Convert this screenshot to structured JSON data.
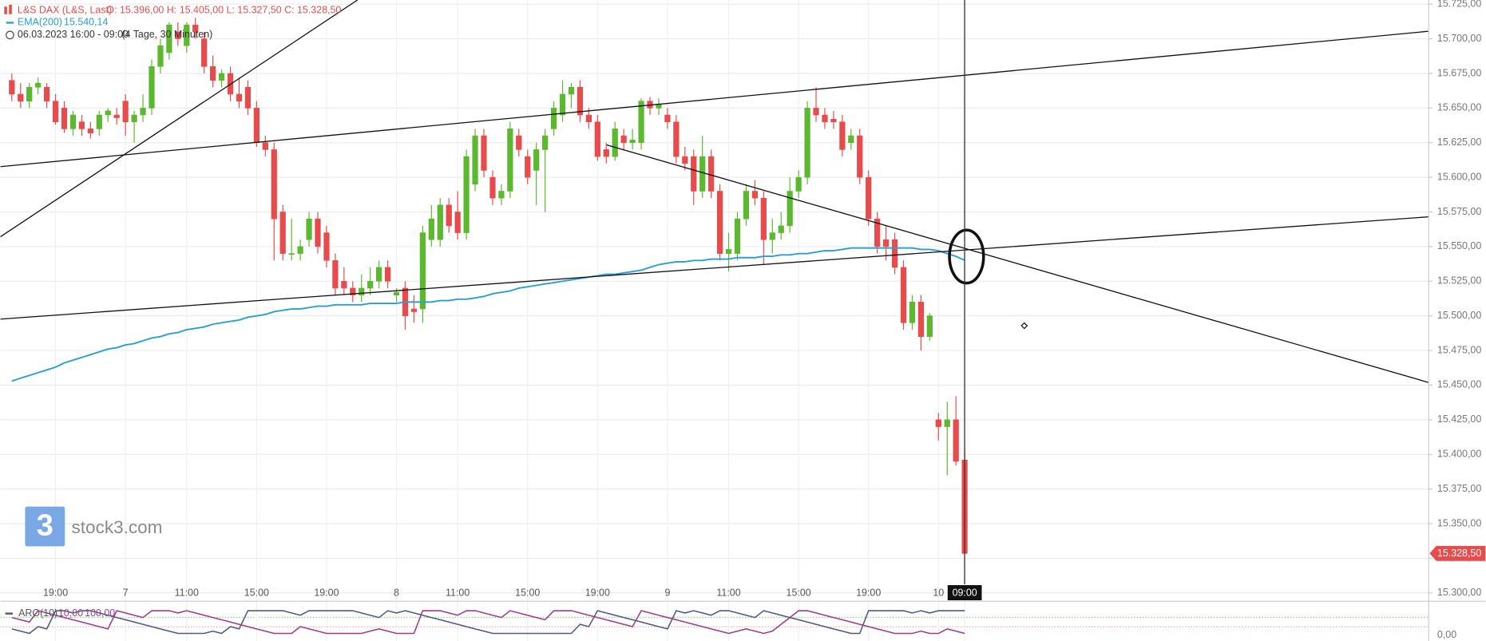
{
  "chart_data": {
    "type": "candlestick",
    "instrument": "L&S DAX (L&S, Last)",
    "ohlc_legend": "O: 15.396,00  H: 15.405,00  L: 15.327,50  C: 15.328,50",
    "ema_name": "EMA(200)",
    "ema_value_label": "15.540,14",
    "period": "06.03.2023 16:00 - 09:00",
    "period_detail": "(4 Tage, 30 Minuten)",
    "watermark": "stock3.com",
    "last_price_label": "15.328,50",
    "up_color": "#5cb82e",
    "down_color": "#e84b4b",
    "ema_color": "#2a9fd0",
    "grid": true,
    "ylim": [
      15294,
      15728
    ],
    "yticks": [
      {
        "value": 15300,
        "label": "15.300,00"
      },
      {
        "value": 15325,
        "label": "15.325,00"
      },
      {
        "value": 15350,
        "label": "15.350,00"
      },
      {
        "value": 15375,
        "label": "15.375,00"
      },
      {
        "value": 15400,
        "label": "15.400,00"
      },
      {
        "value": 15425,
        "label": "15.425,00"
      },
      {
        "value": 15450,
        "label": "15.450,00"
      },
      {
        "value": 15475,
        "label": "15.475,00"
      },
      {
        "value": 15500,
        "label": "15.500,00"
      },
      {
        "value": 15525,
        "label": "15.525,00"
      },
      {
        "value": 15550,
        "label": "15.550,00"
      },
      {
        "value": 15575,
        "label": "15.575,00"
      },
      {
        "value": 15600,
        "label": "15.600,00"
      },
      {
        "value": 15625,
        "label": "15.625,00"
      },
      {
        "value": 15650,
        "label": "15.650,00"
      },
      {
        "value": 15675,
        "label": "15.675,00"
      },
      {
        "value": 15700,
        "label": "15.700,00"
      },
      {
        "value": 15725,
        "label": "15.725,00"
      }
    ],
    "categories": [
      null,
      null,
      null,
      null,
      null,
      "19:00",
      null,
      null,
      null,
      null,
      null,
      null,
      null,
      "7",
      null,
      null,
      null,
      null,
      null,
      null,
      "11:00",
      null,
      null,
      null,
      null,
      null,
      null,
      null,
      "15:00",
      null,
      null,
      null,
      null,
      null,
      null,
      null,
      "19:00",
      null,
      null,
      null,
      null,
      null,
      null,
      null,
      "8",
      null,
      null,
      null,
      null,
      null,
      null,
      "11:00",
      null,
      null,
      null,
      null,
      null,
      null,
      null,
      "15:00",
      null,
      null,
      null,
      null,
      null,
      null,
      null,
      "19:00",
      null,
      null,
      null,
      null,
      null,
      null,
      null,
      "9",
      null,
      null,
      null,
      null,
      null,
      null,
      "11:00",
      null,
      null,
      null,
      null,
      null,
      null,
      null,
      "15:00",
      null,
      null,
      null,
      null,
      null,
      null,
      null,
      "19:00",
      null,
      null,
      null,
      null,
      null,
      null,
      null,
      "10",
      null,
      null,
      "09:00"
    ],
    "ohlc": [
      [
        15670,
        15675,
        15655,
        15660
      ],
      [
        15660,
        15668,
        15650,
        15655
      ],
      [
        15655,
        15668,
        15650,
        15665
      ],
      [
        15665,
        15672,
        15660,
        15668
      ],
      [
        15665,
        15668,
        15650,
        15655
      ],
      [
        15655,
        15660,
        15638,
        15640
      ],
      [
        15650,
        15655,
        15632,
        15635
      ],
      [
        15635,
        15648,
        15630,
        15645
      ],
      [
        15640,
        15645,
        15630,
        15635
      ],
      [
        15635,
        15640,
        15628,
        15632
      ],
      [
        15635,
        15648,
        15630,
        15645
      ],
      [
        15645,
        15650,
        15640,
        15648
      ],
      [
        15645,
        15650,
        15638,
        15643
      ],
      [
        15655,
        15660,
        15630,
        15640
      ],
      [
        15640,
        15648,
        15625,
        15645
      ],
      [
        15645,
        15660,
        15640,
        15650
      ],
      [
        15650,
        15685,
        15645,
        15680
      ],
      [
        15680,
        15700,
        15675,
        15695
      ],
      [
        15690,
        15712,
        15685,
        15710
      ],
      [
        15705,
        15712,
        15695,
        15700
      ],
      [
        15695,
        15712,
        15690,
        15710
      ],
      [
        15710,
        15715,
        15700,
        15705
      ],
      [
        15700,
        15705,
        15675,
        15680
      ],
      [
        15680,
        15688,
        15665,
        15670
      ],
      [
        15670,
        15678,
        15665,
        15675
      ],
      [
        15675,
        15680,
        15655,
        15660
      ],
      [
        15660,
        15672,
        15650,
        15655
      ],
      [
        15665,
        15670,
        15645,
        15650
      ],
      [
        15650,
        15655,
        15622,
        15625
      ],
      [
        15625,
        15630,
        15615,
        15620
      ],
      [
        15620,
        15625,
        15540,
        15570
      ],
      [
        15575,
        15580,
        15540,
        15545
      ],
      [
        15545,
        15570,
        15540,
        15545
      ],
      [
        15545,
        15555,
        15540,
        15550
      ],
      [
        15555,
        15575,
        15550,
        15570
      ],
      [
        15570,
        15575,
        15545,
        15550
      ],
      [
        15560,
        15565,
        15535,
        15540
      ],
      [
        15540,
        15545,
        15515,
        15520
      ],
      [
        15525,
        15535,
        15515,
        15520
      ],
      [
        15520,
        15525,
        15510,
        15515
      ],
      [
        15515,
        15530,
        15510,
        15520
      ],
      [
        15520,
        15535,
        15515,
        15525
      ],
      [
        15525,
        15540,
        15520,
        15535
      ],
      [
        15535,
        15540,
        15520,
        15525
      ],
      [
        15515,
        15520,
        15510,
        15517
      ],
      [
        15520,
        15525,
        15490,
        15500
      ],
      [
        15505,
        15515,
        15495,
        15503
      ],
      [
        15505,
        15565,
        15495,
        15560
      ],
      [
        15555,
        15580,
        15550,
        15570
      ],
      [
        15555,
        15585,
        15550,
        15580
      ],
      [
        15580,
        15585,
        15560,
        15565
      ],
      [
        15575,
        15590,
        15555,
        15560
      ],
      [
        15560,
        15620,
        15555,
        15615
      ],
      [
        15595,
        15635,
        15590,
        15630
      ],
      [
        15630,
        15635,
        15600,
        15605
      ],
      [
        15600,
        15605,
        15580,
        15585
      ],
      [
        15585,
        15595,
        15580,
        15590
      ],
      [
        15590,
        15640,
        15585,
        15635
      ],
      [
        15630,
        15635,
        15615,
        15620
      ],
      [
        15615,
        15620,
        15595,
        15600
      ],
      [
        15605,
        15625,
        15580,
        15620
      ],
      [
        15620,
        15635,
        15575,
        15630
      ],
      [
        15635,
        15655,
        15630,
        15650
      ],
      [
        15645,
        15670,
        15640,
        15660
      ],
      [
        15660,
        15668,
        15650,
        15665
      ],
      [
        15665,
        15670,
        15640,
        15645
      ],
      [
        15645,
        15650,
        15635,
        15640
      ],
      [
        15640,
        15645,
        15612,
        15615
      ],
      [
        15620,
        15625,
        15610,
        15615
      ],
      [
        15615,
        15640,
        15612,
        15635
      ],
      [
        15630,
        15635,
        15620,
        15625
      ],
      [
        15625,
        15635,
        15620,
        15627
      ],
      [
        15625,
        15657,
        15620,
        15655
      ],
      [
        15655,
        15658,
        15645,
        15650
      ],
      [
        15650,
        15657,
        15645,
        15653
      ],
      [
        15645,
        15650,
        15635,
        15640
      ],
      [
        15640,
        15645,
        15610,
        15615
      ],
      [
        15615,
        15622,
        15605,
        15610
      ],
      [
        15615,
        15620,
        15580,
        15590
      ],
      [
        15590,
        15630,
        15585,
        15615
      ],
      [
        15615,
        15620,
        15585,
        15590
      ],
      [
        15590,
        15595,
        15540,
        15545
      ],
      [
        15545,
        15560,
        15532,
        15548
      ],
      [
        15545,
        15575,
        15540,
        15570
      ],
      [
        15570,
        15595,
        15565,
        15590
      ],
      [
        15590,
        15598,
        15580,
        15585
      ],
      [
        15585,
        15590,
        15537,
        15555
      ],
      [
        15555,
        15570,
        15545,
        15560
      ],
      [
        15560,
        15575,
        15555,
        15565
      ],
      [
        15565,
        15600,
        15560,
        15590
      ],
      [
        15590,
        15605,
        15585,
        15600
      ],
      [
        15600,
        15655,
        15595,
        15650
      ],
      [
        15650,
        15665,
        15640,
        15645
      ],
      [
        15645,
        15650,
        15635,
        15640
      ],
      [
        15642,
        15648,
        15635,
        15640
      ],
      [
        15640,
        15645,
        15615,
        15620
      ],
      [
        15625,
        15635,
        15620,
        15630
      ],
      [
        15630,
        15635,
        15595,
        15600
      ],
      [
        15600,
        15605,
        15565,
        15570
      ],
      [
        15570,
        15575,
        15545,
        15550
      ],
      [
        15555,
        15565,
        15540,
        15550
      ],
      [
        15555,
        15560,
        15530,
        15535
      ],
      [
        15535,
        15540,
        15490,
        15495
      ],
      [
        15495,
        15515,
        15490,
        15510
      ],
      [
        15510,
        15515,
        15475,
        15485
      ],
      [
        15485,
        15502,
        15482,
        15500
      ],
      [
        15425,
        15430,
        15410,
        15420
      ],
      [
        15420,
        15438,
        15385,
        15425
      ],
      [
        15425,
        15442,
        15392,
        15395
      ],
      [
        15396,
        15405,
        15327.5,
        15328.5
      ]
    ],
    "ema": [
      15453,
      15455,
      15457,
      15459,
      15461,
      15463,
      15466,
      15468,
      15470,
      15472,
      15474,
      15476,
      15477,
      15479,
      15480,
      15482,
      15484,
      15485,
      15487,
      15488,
      15490,
      15491,
      15492,
      15494,
      15495,
      15496,
      15497,
      15499,
      15500,
      15501,
      15503,
      15504,
      15505,
      15505,
      15506,
      15507,
      15507,
      15508,
      15508,
      15508,
      15508,
      15509,
      15509,
      15509,
      15509,
      15510,
      15510,
      15510,
      15510,
      15511,
      15511,
      15512,
      15512,
      15513,
      15514,
      15516,
      15517,
      15518,
      15520,
      15521,
      15522,
      15523,
      15524,
      15525,
      15526,
      15527,
      15528,
      15529,
      15530,
      15530,
      15531,
      15532,
      15533,
      15535,
      15537,
      15538,
      15539,
      15539,
      15540,
      15540,
      15541,
      15541,
      15541,
      15542,
      15542,
      15542,
      15543,
      15543,
      15544,
      15544,
      15545,
      15545,
      15546,
      15547,
      15547,
      15548,
      15549,
      15549,
      15549,
      15549,
      15549,
      15549,
      15549,
      15549,
      15548,
      15548,
      15547,
      15545,
      15543,
      15540.14
    ],
    "aroon_name": "ARO(10)",
    "aroon_param_1": "10,00",
    "aroon_param_2": "100,00",
    "aroon_ylim": [
      0,
      100
    ],
    "aroon_yticks": [
      {
        "value": 0,
        "label": "0,00"
      }
    ],
    "aroon_up_color": "#9b3d8c",
    "aroon_down_color": "#4c5a82",
    "aroon_up": [
      70,
      60,
      50,
      100,
      90,
      80,
      70,
      60,
      50,
      40,
      30,
      20,
      100,
      90,
      80,
      70,
      100,
      100,
      100,
      90,
      100,
      90,
      80,
      70,
      60,
      50,
      40,
      30,
      20,
      10,
      0,
      0,
      0,
      30,
      20,
      10,
      0,
      0,
      0,
      0,
      0,
      10,
      20,
      10,
      0,
      0,
      0,
      100,
      100,
      100,
      90,
      80,
      100,
      100,
      90,
      80,
      70,
      100,
      90,
      80,
      70,
      60,
      100,
      100,
      100,
      90,
      80,
      70,
      60,
      50,
      40,
      30,
      100,
      90,
      80,
      70,
      60,
      50,
      40,
      30,
      20,
      10,
      0,
      10,
      20,
      10,
      0,
      10,
      40,
      70,
      100,
      100,
      90,
      80,
      70,
      60,
      50,
      40,
      30,
      20,
      10,
      0,
      0,
      0,
      10,
      0,
      0,
      20,
      10,
      0
    ],
    "aroon_down": [
      20,
      10,
      0,
      30,
      20,
      100,
      100,
      90,
      100,
      100,
      90,
      80,
      70,
      60,
      50,
      40,
      30,
      20,
      10,
      0,
      0,
      0,
      0,
      10,
      0,
      30,
      20,
      100,
      100,
      100,
      100,
      100,
      90,
      80,
      100,
      100,
      100,
      100,
      100,
      100,
      90,
      80,
      70,
      100,
      90,
      100,
      90,
      80,
      70,
      60,
      50,
      40,
      30,
      20,
      10,
      0,
      0,
      0,
      0,
      0,
      0,
      0,
      0,
      0,
      0,
      40,
      30,
      100,
      90,
      80,
      70,
      60,
      50,
      40,
      30,
      20,
      100,
      90,
      100,
      90,
      80,
      100,
      100,
      90,
      80,
      70,
      100,
      90,
      80,
      70,
      60,
      50,
      40,
      30,
      20,
      10,
      0,
      0,
      100,
      100,
      100,
      100,
      100,
      90,
      100,
      90,
      100,
      100,
      100,
      100
    ]
  }
}
